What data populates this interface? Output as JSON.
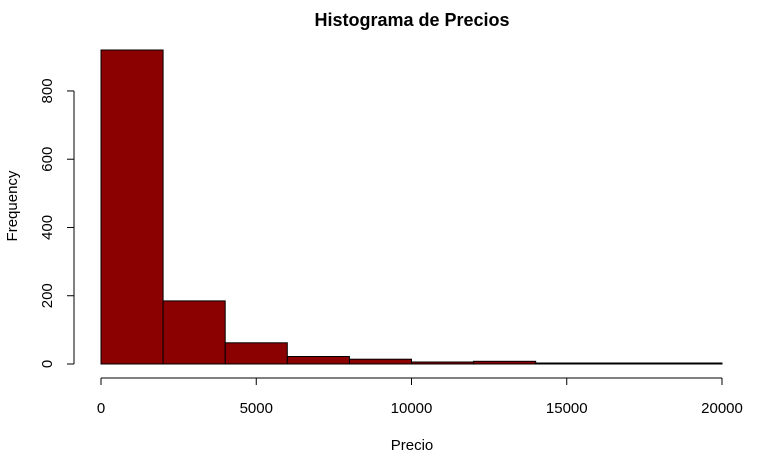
{
  "chart_data": {
    "type": "bar",
    "subtype": "histogram",
    "title": "Histograma de Precios",
    "xlabel": "Precio",
    "ylabel": "Frequency",
    "bins": [
      {
        "start": 0,
        "end": 2000,
        "count": 920
      },
      {
        "start": 2000,
        "end": 4000,
        "count": 185
      },
      {
        "start": 4000,
        "end": 6000,
        "count": 62
      },
      {
        "start": 6000,
        "end": 8000,
        "count": 22
      },
      {
        "start": 8000,
        "end": 10000,
        "count": 14
      },
      {
        "start": 10000,
        "end": 12000,
        "count": 6
      },
      {
        "start": 12000,
        "end": 14000,
        "count": 8
      },
      {
        "start": 14000,
        "end": 16000,
        "count": 3
      },
      {
        "start": 16000,
        "end": 18000,
        "count": 3
      },
      {
        "start": 18000,
        "end": 20000,
        "count": 3
      }
    ],
    "xlim": [
      0,
      20000
    ],
    "ylim": [
      0,
      920
    ],
    "x_ticks": [
      0,
      5000,
      10000,
      15000,
      20000
    ],
    "y_ticks": [
      0,
      200,
      400,
      600,
      800
    ],
    "bar_color": "#8b0000",
    "grid": false
  }
}
